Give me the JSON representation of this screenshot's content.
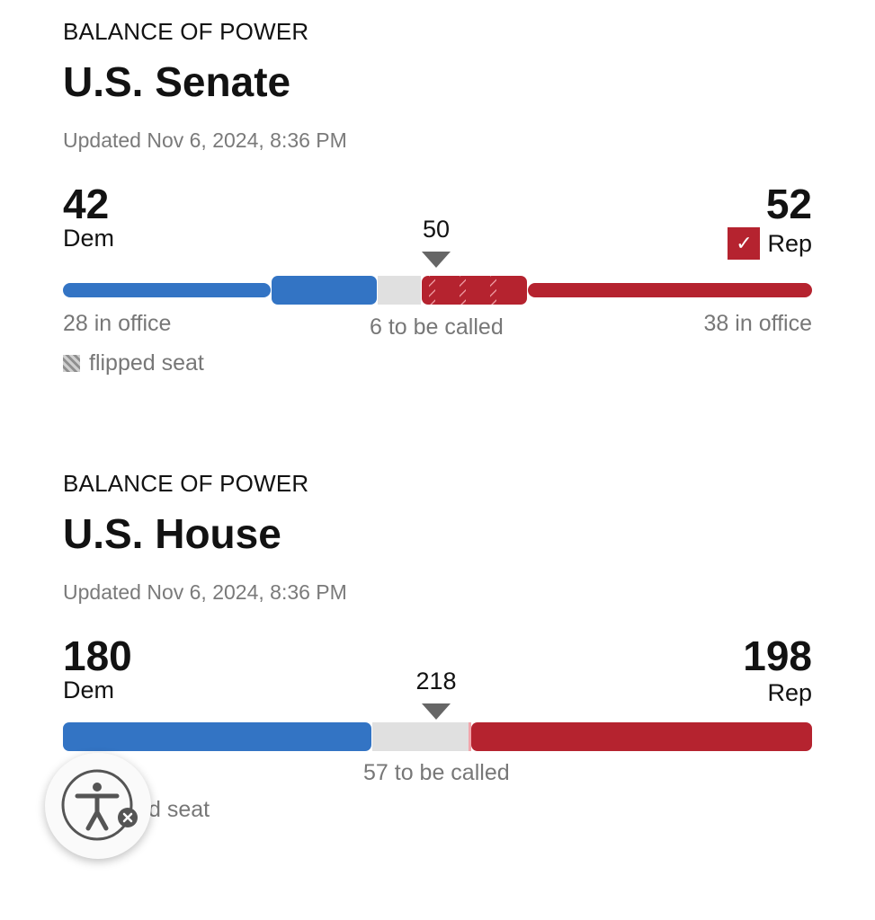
{
  "senate": {
    "kicker": "BALANCE OF POWER",
    "title": "U.S. Senate",
    "updated": "Updated Nov 6, 2024, 8:36 PM",
    "dem": {
      "count": "42",
      "label": "Dem",
      "in_office": "28 in office"
    },
    "rep": {
      "count": "52",
      "label": "Rep",
      "in_office": "38 in office",
      "winner_check": "✓"
    },
    "majority": "50",
    "to_be_called": "6 to be called",
    "legend": "flipped seat"
  },
  "house": {
    "kicker": "BALANCE OF POWER",
    "title": "U.S. House",
    "updated": "Updated Nov 6, 2024, 8:36 PM",
    "dem": {
      "count": "180",
      "label": "Dem"
    },
    "rep": {
      "count": "198",
      "label": "Rep"
    },
    "majority": "218",
    "to_be_called": "57 to be called",
    "legend_partial": "d seat"
  },
  "colors": {
    "dem": "#3374c4",
    "rep": "#b5232f",
    "uncalled": "#e0e0e0",
    "muted": "#777777"
  },
  "icons": {
    "accessibility": "accessibility-icon",
    "close": "close-icon"
  }
}
